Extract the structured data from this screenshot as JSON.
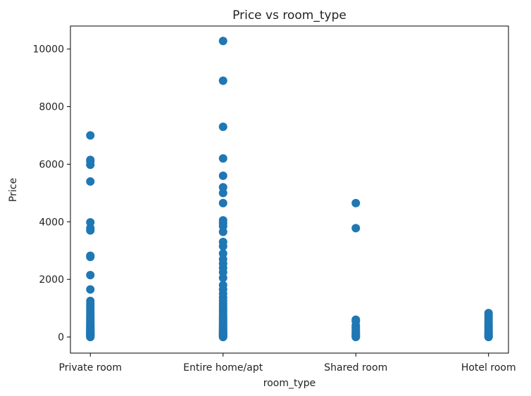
{
  "chart_data": {
    "type": "scatter",
    "title": "Price vs room_type",
    "xlabel": "room_type",
    "ylabel": "Price",
    "categories": [
      "Private room",
      "Entire home/apt",
      "Shared room",
      "Hotel room"
    ],
    "yticks": [
      0,
      2000,
      4000,
      6000,
      8000,
      10000
    ],
    "ylim": [
      -560,
      10800
    ],
    "grid": false,
    "marker_color": "#1f77b4",
    "series": [
      {
        "points": [
          {
            "category": "Private room",
            "values": [
              0,
              20,
              40,
              60,
              80,
              100,
              120,
              140,
              160,
              180,
              200,
              220,
              250,
              280,
              300,
              330,
              360,
              400,
              430,
              470,
              500,
              550,
              600,
              650,
              700,
              760,
              820,
              900,
              980,
              1060,
              1150,
              1250,
              1650,
              2150,
              2780,
              2820,
              3700,
              3780,
              3980,
              5400,
              5980,
              6100,
              6150,
              7000
            ]
          },
          {
            "category": "Entire home/apt",
            "values": [
              0,
              20,
              40,
              60,
              80,
              100,
              130,
              160,
              190,
              220,
              250,
              290,
              330,
              380,
              430,
              480,
              540,
              600,
              660,
              720,
              800,
              880,
              960,
              1050,
              1150,
              1250,
              1370,
              1500,
              1650,
              1800,
              2050,
              2250,
              2400,
              2550,
              2700,
              2900,
              3150,
              3300,
              3650,
              3850,
              3950,
              4050,
              4650,
              5000,
              5200,
              5600,
              6200,
              7300,
              8900,
              10280
            ]
          },
          {
            "category": "Shared room",
            "values": [
              0,
              30,
              60,
              100,
              140,
              200,
              260,
              330,
              400,
              550,
              600,
              3780,
              4650
            ]
          },
          {
            "category": "Hotel room",
            "values": [
              0,
              20,
              40,
              60,
              90,
              120,
              160,
              200,
              250,
              300,
              350,
              400,
              450,
              520,
              600,
              680,
              760,
              830
            ]
          }
        ]
      }
    ]
  }
}
